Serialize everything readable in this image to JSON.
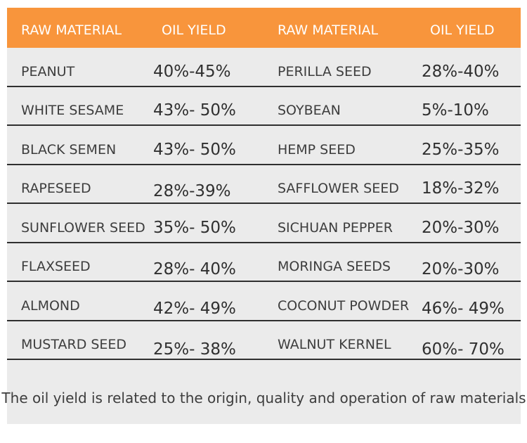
{
  "chart_data": {
    "type": "table",
    "columns": [
      "RAW MATERIAL",
      "OIL YIELD",
      "RAW MATERIAL",
      "OIL YIELD"
    ],
    "rows": [
      [
        "PEANUT",
        "40%-45%",
        "PERILLA SEED",
        "28%-40%"
      ],
      [
        "WHITE SESAME",
        "43%- 50%",
        "SOYBEAN",
        "5%-10%"
      ],
      [
        "BLACK SEMEN",
        "43%- 50%",
        "HEMP SEED",
        "25%-35%"
      ],
      [
        "RAPESEED",
        "28%-39%",
        "SAFFLOWER SEED",
        "18%-32%"
      ],
      [
        "SUNFLOWER SEED",
        "35%- 50%",
        "SICHUAN PEPPER",
        "20%-30%"
      ],
      [
        "FLAXSEED",
        "28%- 40%",
        "MORINGA SEEDS",
        "20%-30%"
      ],
      [
        "ALMOND",
        "42%- 49%",
        "COCONUT POWDER",
        "46%- 49%"
      ],
      [
        "MUSTARD SEED",
        "25%- 38%",
        "WALNUT KERNEL",
        "60%- 70%"
      ]
    ],
    "note": "The oil yield is related to the origin, quality and operation of raw materials"
  },
  "colors": {
    "accent_orange": "#F8953C",
    "row_bg": "#EBEBEB",
    "divider": "#2F2F2F",
    "header_text": "#FFFFFF",
    "body_text": "#3D3D3D"
  }
}
